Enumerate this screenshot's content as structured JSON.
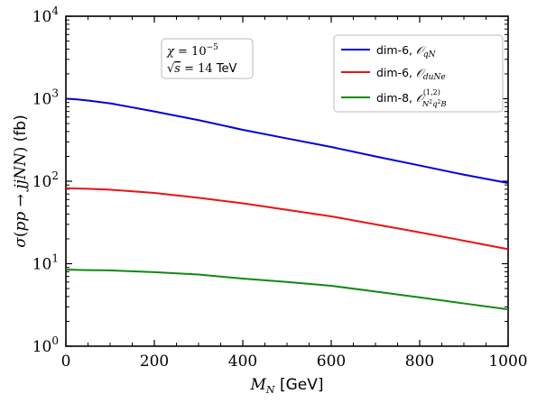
{
  "chart_data": {
    "type": "line",
    "title": "",
    "xlabel": "M_N [GeV]",
    "ylabel": "σ(pp → jjNN) (fb)",
    "xlim": [
      0,
      1000
    ],
    "ylim": [
      1,
      10000
    ],
    "yscale": "log",
    "grid": false,
    "legend_position": "top-right",
    "x_ticks": [
      0,
      200,
      400,
      600,
      800,
      1000
    ],
    "y_ticks": [
      1,
      10,
      100,
      1000,
      10000
    ],
    "y_tick_labels": [
      "10^0",
      "10^1",
      "10^2",
      "10^3",
      "10^4"
    ],
    "x_tick_labels": [
      "0",
      "200",
      "400",
      "600",
      "800",
      "1000"
    ],
    "annotation": {
      "line1": "χ = 10^-5",
      "line2": "√s = 14 TeV"
    },
    "series": [
      {
        "name": "dim-6, O_qN",
        "color": "#0000dd",
        "x": [
          0,
          25,
          50,
          100,
          200,
          300,
          400,
          500,
          600,
          700,
          800,
          900,
          1000
        ],
        "y": [
          1000,
          980,
          950,
          880,
          700,
          550,
          420,
          330,
          260,
          200,
          155,
          120,
          95
        ]
      },
      {
        "name": "dim-6, O_duNe",
        "color": "#ee1111",
        "x": [
          0,
          25,
          50,
          100,
          200,
          300,
          400,
          500,
          600,
          700,
          800,
          900,
          1000
        ],
        "y": [
          82,
          81.5,
          81,
          79,
          72,
          63,
          54,
          45,
          37.5,
          30,
          24,
          19,
          15
        ]
      },
      {
        "name": "dim-8, O^(1,2)_N²q²B",
        "color": "#118811",
        "x": [
          0,
          25,
          50,
          100,
          200,
          300,
          400,
          500,
          600,
          700,
          800,
          900,
          1000
        ],
        "y": [
          8.5,
          8.4,
          8.35,
          8.3,
          7.9,
          7.4,
          6.6,
          6.0,
          5.4,
          4.6,
          3.9,
          3.3,
          2.8
        ]
      }
    ]
  }
}
